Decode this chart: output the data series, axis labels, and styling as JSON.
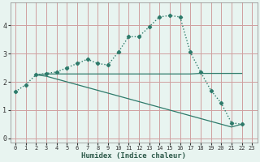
{
  "xlabel": "Humidex (Indice chaleur)",
  "background_color": "#e8f4f0",
  "grid_color": "#d0a0a0",
  "line_color": "#2d7a6a",
  "xlim": [
    -0.5,
    23.5
  ],
  "ylim": [
    -0.15,
    4.8
  ],
  "xticks": [
    0,
    1,
    2,
    3,
    4,
    5,
    6,
    7,
    8,
    9,
    10,
    11,
    12,
    13,
    14,
    15,
    16,
    17,
    18,
    19,
    20,
    21,
    22,
    23
  ],
  "yticks": [
    0,
    1,
    2,
    3,
    4
  ],
  "curve_x": [
    0,
    1,
    2,
    3,
    4,
    5,
    6,
    7,
    8,
    9,
    10,
    11,
    12,
    13,
    14,
    15,
    16,
    17,
    18,
    19,
    20,
    21,
    22
  ],
  "curve_y": [
    1.65,
    1.9,
    2.25,
    2.3,
    2.35,
    2.5,
    2.65,
    2.8,
    2.65,
    2.6,
    3.05,
    3.6,
    3.6,
    3.95,
    4.3,
    4.35,
    4.3,
    3.05,
    2.35,
    1.7,
    1.25,
    0.55,
    0.5
  ],
  "flat_x": [
    2,
    3,
    4,
    5,
    6,
    7,
    8,
    9,
    10,
    11,
    12,
    13,
    14,
    15,
    16,
    17,
    18,
    19,
    20,
    21,
    22
  ],
  "flat_y": [
    2.25,
    2.28,
    2.28,
    2.28,
    2.28,
    2.28,
    2.28,
    2.28,
    2.28,
    2.28,
    2.28,
    2.28,
    2.28,
    2.28,
    2.28,
    2.28,
    2.3,
    2.3,
    2.3,
    2.3,
    2.3
  ],
  "diag_x": [
    2,
    3,
    4,
    5,
    6,
    7,
    8,
    9,
    10,
    11,
    12,
    13,
    14,
    15,
    16,
    17,
    18,
    19,
    20,
    21,
    22
  ],
  "diag_y": [
    2.25,
    2.2,
    2.1,
    2.0,
    1.9,
    1.8,
    1.7,
    1.6,
    1.5,
    1.4,
    1.3,
    1.2,
    1.1,
    1.0,
    0.9,
    0.8,
    0.7,
    0.6,
    0.5,
    0.4,
    0.5
  ]
}
